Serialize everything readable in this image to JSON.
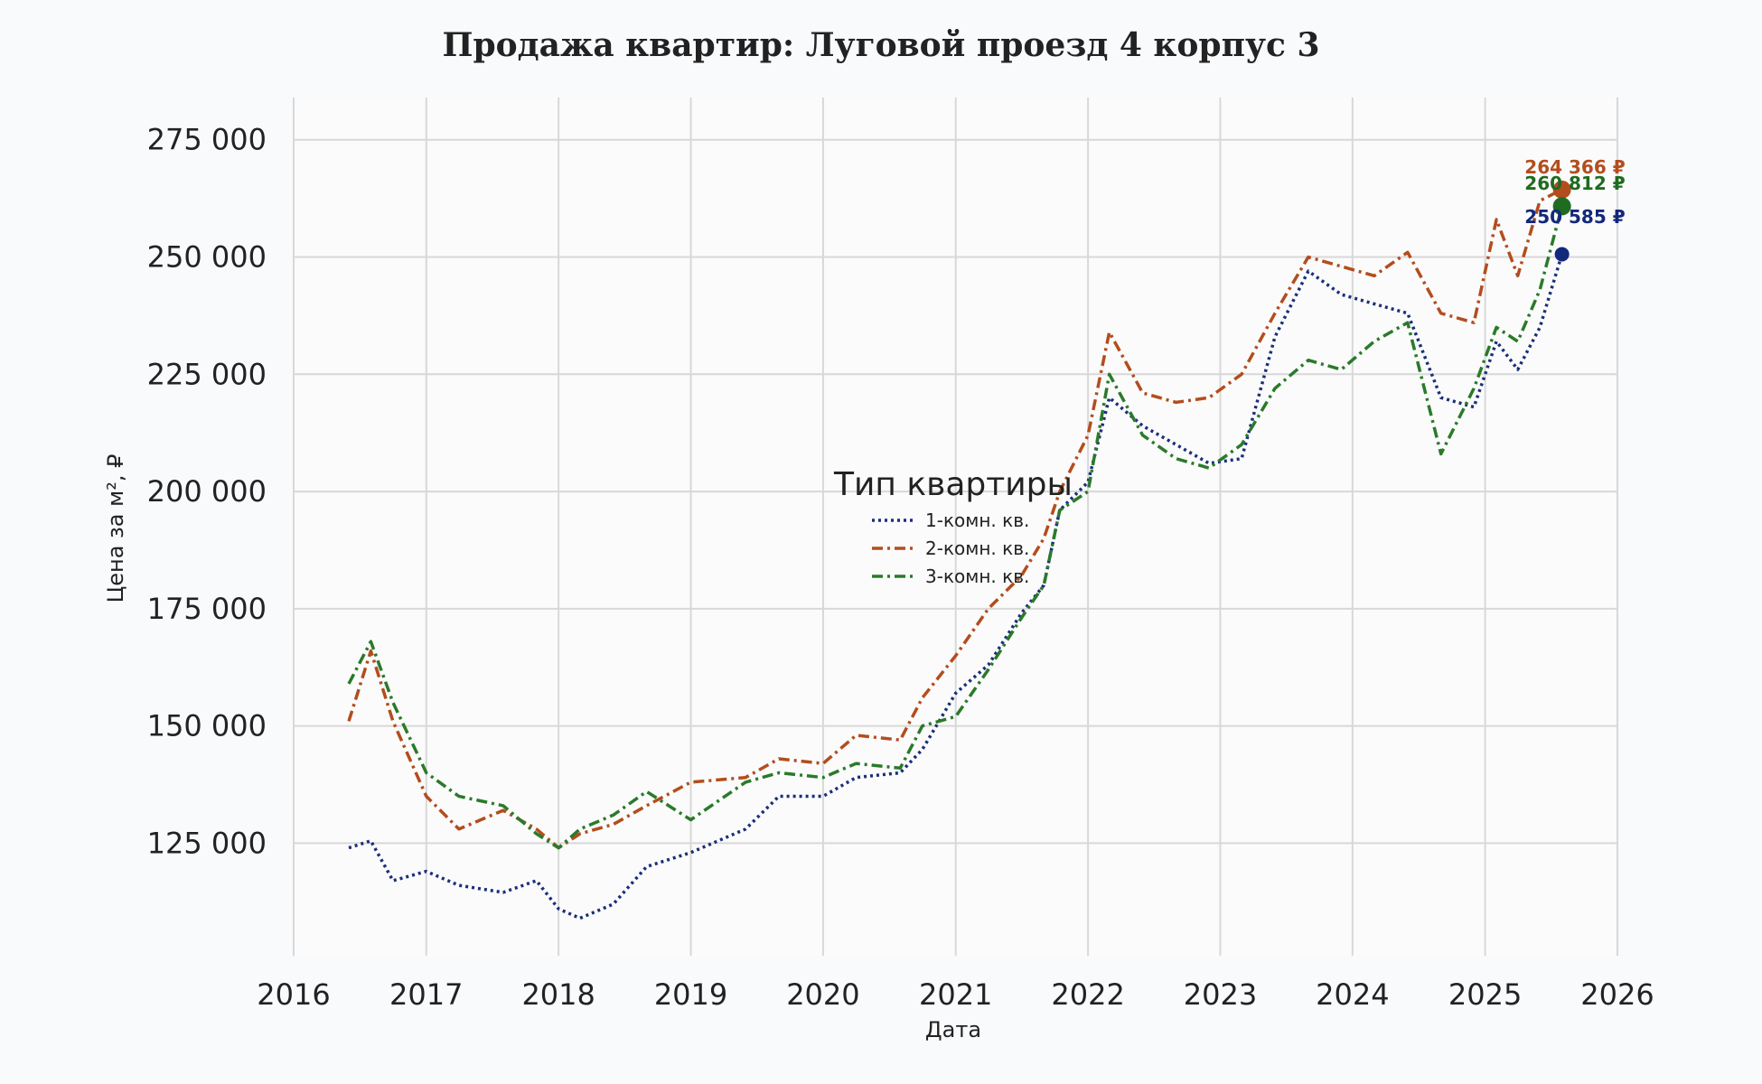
{
  "chart_data": {
    "type": "line",
    "title": "Продажа квартир: Луговой проезд 4 корпус 3",
    "xlabel": "Дата",
    "ylabel": "Цена за м², ₽",
    "xlim": [
      "2016-01-01",
      "2026-01-01"
    ],
    "ylim": [
      101000,
      284000
    ],
    "x_ticks": [
      "2016",
      "2017",
      "2018",
      "2019",
      "2020",
      "2021",
      "2022",
      "2023",
      "2024",
      "2025",
      "2026"
    ],
    "y_ticks": [
      125000,
      150000,
      175000,
      200000,
      225000,
      250000,
      275000
    ],
    "y_tick_labels": [
      "125 000",
      "150 000",
      "175 000",
      "200 000",
      "225 000",
      "250 000",
      "275 000"
    ],
    "grid": true,
    "legend": {
      "title": "Тип квартиры",
      "placement": "center"
    },
    "series": [
      {
        "name": "1-комн. кв.",
        "color": "#1a2f7a",
        "dash": "dotted",
        "points": [
          [
            "2016-06-01",
            124000
          ],
          [
            "2016-08-01",
            125500
          ],
          [
            "2016-10-01",
            117000
          ],
          [
            "2017-01-01",
            119000
          ],
          [
            "2017-04-01",
            116000
          ],
          [
            "2017-08-01",
            114500
          ],
          [
            "2017-11-01",
            117000
          ],
          [
            "2018-01-01",
            111000
          ],
          [
            "2018-03-01",
            109000
          ],
          [
            "2018-06-01",
            112000
          ],
          [
            "2018-09-01",
            120000
          ],
          [
            "2019-01-01",
            123000
          ],
          [
            "2019-06-01",
            128000
          ],
          [
            "2019-09-01",
            135000
          ],
          [
            "2020-01-01",
            135000
          ],
          [
            "2020-04-01",
            139000
          ],
          [
            "2020-08-01",
            140000
          ],
          [
            "2020-10-01",
            145000
          ],
          [
            "2021-01-01",
            157000
          ],
          [
            "2021-04-01",
            163000
          ],
          [
            "2021-07-01",
            174000
          ],
          [
            "2021-09-01",
            180000
          ],
          [
            "2021-10-15",
            196000
          ],
          [
            "2022-01-01",
            202000
          ],
          [
            "2022-03-01",
            220000
          ],
          [
            "2022-06-01",
            214000
          ],
          [
            "2022-09-01",
            210000
          ],
          [
            "2022-12-01",
            206000
          ],
          [
            "2023-03-01",
            207000
          ],
          [
            "2023-06-01",
            233000
          ],
          [
            "2023-09-01",
            247000
          ],
          [
            "2023-12-01",
            242000
          ],
          [
            "2024-03-01",
            240000
          ],
          [
            "2024-06-01",
            238000
          ],
          [
            "2024-09-01",
            220000
          ],
          [
            "2024-12-01",
            218000
          ],
          [
            "2025-02-01",
            232000
          ],
          [
            "2025-04-01",
            226000
          ],
          [
            "2025-06-01",
            235000
          ],
          [
            "2025-08-01",
            250585
          ]
        ]
      },
      {
        "name": "2-комн. кв.",
        "color": "#b34d1e",
        "dash": "dashdot",
        "points": [
          [
            "2016-06-01",
            151000
          ],
          [
            "2016-08-01",
            166000
          ],
          [
            "2016-10-01",
            151000
          ],
          [
            "2017-01-01",
            135000
          ],
          [
            "2017-04-01",
            128000
          ],
          [
            "2017-08-01",
            132000
          ],
          [
            "2017-11-01",
            128000
          ],
          [
            "2018-01-01",
            124000
          ],
          [
            "2018-03-01",
            127000
          ],
          [
            "2018-06-01",
            129000
          ],
          [
            "2018-09-01",
            133000
          ],
          [
            "2019-01-01",
            138000
          ],
          [
            "2019-06-01",
            139000
          ],
          [
            "2019-09-01",
            143000
          ],
          [
            "2020-01-01",
            142000
          ],
          [
            "2020-04-01",
            148000
          ],
          [
            "2020-08-01",
            147000
          ],
          [
            "2020-10-01",
            156000
          ],
          [
            "2021-01-01",
            165000
          ],
          [
            "2021-04-01",
            175000
          ],
          [
            "2021-07-01",
            182000
          ],
          [
            "2021-09-01",
            190000
          ],
          [
            "2021-10-15",
            200000
          ],
          [
            "2022-01-01",
            212000
          ],
          [
            "2022-03-01",
            234000
          ],
          [
            "2022-06-01",
            221000
          ],
          [
            "2022-09-01",
            219000
          ],
          [
            "2022-12-01",
            220000
          ],
          [
            "2023-03-01",
            225000
          ],
          [
            "2023-06-01",
            238000
          ],
          [
            "2023-09-01",
            250000
          ],
          [
            "2023-12-01",
            248000
          ],
          [
            "2024-03-01",
            246000
          ],
          [
            "2024-06-01",
            251000
          ],
          [
            "2024-09-01",
            238000
          ],
          [
            "2024-12-01",
            236000
          ],
          [
            "2025-02-01",
            258000
          ],
          [
            "2025-04-01",
            246000
          ],
          [
            "2025-06-01",
            262000
          ],
          [
            "2025-08-01",
            264366
          ]
        ]
      },
      {
        "name": "3-комн. кв.",
        "color": "#2a7a2a",
        "dash": "dashdot",
        "points": [
          [
            "2016-06-01",
            159000
          ],
          [
            "2016-08-01",
            168000
          ],
          [
            "2016-10-01",
            155000
          ],
          [
            "2017-01-01",
            140000
          ],
          [
            "2017-04-01",
            135000
          ],
          [
            "2017-08-01",
            133000
          ],
          [
            "2017-11-01",
            127000
          ],
          [
            "2018-01-01",
            124000
          ],
          [
            "2018-03-01",
            128000
          ],
          [
            "2018-06-01",
            131000
          ],
          [
            "2018-09-01",
            136000
          ],
          [
            "2019-01-01",
            130000
          ],
          [
            "2019-06-01",
            138000
          ],
          [
            "2019-09-01",
            140000
          ],
          [
            "2020-01-01",
            139000
          ],
          [
            "2020-04-01",
            142000
          ],
          [
            "2020-08-01",
            141000
          ],
          [
            "2020-10-01",
            150000
          ],
          [
            "2021-01-01",
            152000
          ],
          [
            "2021-04-01",
            162000
          ],
          [
            "2021-07-01",
            173000
          ],
          [
            "2021-09-01",
            180000
          ],
          [
            "2021-10-15",
            196000
          ],
          [
            "2022-01-01",
            200000
          ],
          [
            "2022-03-01",
            225000
          ],
          [
            "2022-06-01",
            212000
          ],
          [
            "2022-09-01",
            207000
          ],
          [
            "2022-12-01",
            205000
          ],
          [
            "2023-03-01",
            210000
          ],
          [
            "2023-06-01",
            222000
          ],
          [
            "2023-09-01",
            228000
          ],
          [
            "2023-12-01",
            226000
          ],
          [
            "2024-03-01",
            232000
          ],
          [
            "2024-06-01",
            236000
          ],
          [
            "2024-09-01",
            208000
          ],
          [
            "2024-12-01",
            222000
          ],
          [
            "2025-02-01",
            235000
          ],
          [
            "2025-04-01",
            232000
          ],
          [
            "2025-06-01",
            243000
          ],
          [
            "2025-08-01",
            260812
          ]
        ]
      }
    ],
    "end_labels": [
      {
        "series": "2-комн. кв.",
        "date": "2025-08-01",
        "value": 264366,
        "text": "264 366 ₽",
        "color": "#b34d1e"
      },
      {
        "series": "3-комн. кв.",
        "date": "2025-08-01",
        "value": 260812,
        "text": "260 812 ₽",
        "color": "#1f6b1f"
      },
      {
        "series": "1-комн. кв.",
        "date": "2025-08-01",
        "value": 250585,
        "text": "250 585 ₽",
        "color": "#12287a"
      }
    ]
  }
}
